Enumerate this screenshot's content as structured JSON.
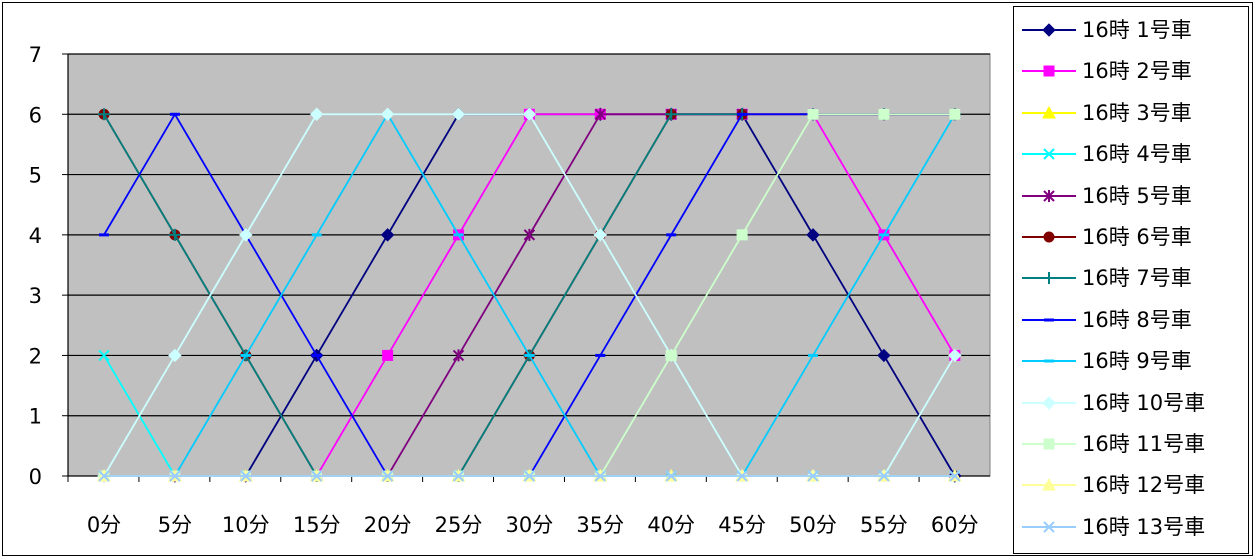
{
  "chart_data": {
    "type": "line",
    "categories": [
      "0分",
      "5分",
      "10分",
      "15分",
      "20分",
      "25分",
      "30分",
      "35分",
      "40分",
      "45分",
      "50分",
      "55分",
      "60分"
    ],
    "y_ticks": [
      "0",
      "1",
      "2",
      "3",
      "4",
      "5",
      "6",
      "7"
    ],
    "ylim": [
      0,
      7
    ],
    "grid": true,
    "legend_position": "right",
    "plot_background": "#c0c0c0",
    "series": [
      {
        "name": "16時 1号車",
        "color": "#000080",
        "marker": "diamond",
        "values": [
          0,
          0,
          0,
          2,
          4,
          6,
          6,
          6,
          6,
          6,
          4,
          2,
          0
        ]
      },
      {
        "name": "16時 2号車",
        "color": "#ff00ff",
        "marker": "square",
        "values": [
          0,
          0,
          0,
          0,
          2,
          4,
          6,
          6,
          6,
          6,
          6,
          4,
          2
        ]
      },
      {
        "name": "16時 3号車",
        "color": "#ffff00",
        "marker": "triangle",
        "values": [
          0,
          0,
          0,
          0,
          0,
          0,
          0,
          0,
          0,
          0,
          0,
          0,
          0
        ]
      },
      {
        "name": "16時 4号車",
        "color": "#00ffff",
        "marker": "x",
        "values": [
          2,
          0,
          0,
          0,
          0,
          0,
          0,
          0,
          0,
          0,
          0,
          0,
          0
        ]
      },
      {
        "name": "16時 5号車",
        "color": "#800080",
        "marker": "star",
        "values": [
          0,
          0,
          0,
          0,
          0,
          2,
          4,
          6,
          6,
          6,
          6,
          6,
          6
        ]
      },
      {
        "name": "16時 6号車",
        "color": "#800000",
        "marker": "circle",
        "values": [
          6,
          4,
          2,
          0,
          0,
          0,
          2,
          4,
          6,
          6,
          6,
          6,
          6
        ]
      },
      {
        "name": "16時 7号車",
        "color": "#008080",
        "marker": "plus",
        "values": [
          6,
          4,
          2,
          0,
          0,
          0,
          2,
          4,
          6,
          6,
          6,
          6,
          6
        ]
      },
      {
        "name": "16時 8号車",
        "color": "#0000ff",
        "marker": "dash",
        "values": [
          4,
          6,
          4,
          2,
          0,
          0,
          0,
          2,
          4,
          6,
          6,
          6,
          6
        ]
      },
      {
        "name": "16時 9号車",
        "color": "#00ccff",
        "marker": "dash",
        "values": [
          0,
          0,
          2,
          4,
          6,
          4,
          2,
          0,
          0,
          0,
          2,
          4,
          6
        ]
      },
      {
        "name": "16時 10号車",
        "color": "#ccffff",
        "marker": "diamond",
        "values": [
          0,
          2,
          4,
          6,
          6,
          6,
          6,
          4,
          2,
          0,
          0,
          0,
          2
        ]
      },
      {
        "name": "16時 11号車",
        "color": "#ccffcc",
        "marker": "square",
        "values": [
          0,
          0,
          0,
          0,
          0,
          0,
          0,
          0,
          2,
          4,
          6,
          6,
          6
        ]
      },
      {
        "name": "16時 12号車",
        "color": "#ffff99",
        "marker": "triangle",
        "values": [
          0,
          0,
          0,
          0,
          0,
          0,
          0,
          0,
          0,
          0,
          0,
          0,
          0
        ]
      },
      {
        "name": "16時 13号車",
        "color": "#99ccff",
        "marker": "x",
        "values": [
          0,
          0,
          0,
          0,
          0,
          0,
          0,
          0,
          0,
          0,
          0,
          0,
          0
        ]
      }
    ]
  }
}
